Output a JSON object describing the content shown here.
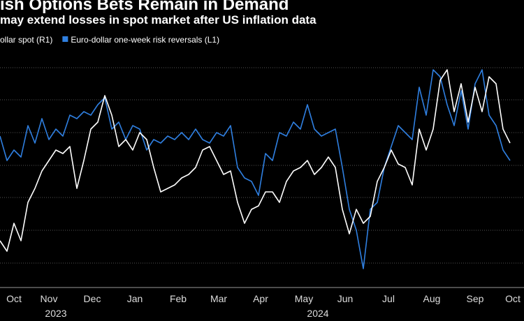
{
  "chart_data": {
    "type": "line",
    "title": "ish Options Bets Remain in Demand",
    "subtitle": "may extend losses in spot market after US inflation data",
    "x": [
      0,
      5,
      10,
      15,
      20,
      25,
      30,
      35,
      40,
      45,
      50,
      55,
      60,
      65,
      70,
      75,
      80,
      85,
      90,
      95,
      100,
      105,
      110,
      115,
      120,
      125,
      130,
      135,
      140,
      145,
      150,
      155,
      160,
      165,
      170,
      175,
      180,
      185,
      190,
      195,
      200,
      205,
      210,
      215,
      220,
      225,
      230,
      235,
      240,
      245,
      250,
      255,
      260,
      265,
      270,
      275,
      280,
      285,
      290,
      295,
      300,
      305,
      310,
      315,
      320,
      325,
      330,
      335,
      340,
      345,
      350,
      355,
      360,
      365
    ],
    "xlim": [
      0,
      375
    ],
    "xticks": [
      {
        "value": 10,
        "label": "Oct"
      },
      {
        "value": 35,
        "label": "Nov"
      },
      {
        "value": 66,
        "label": "Dec"
      },
      {
        "value": 96.5,
        "label": "Jan"
      },
      {
        "value": 127.5,
        "label": "Feb"
      },
      {
        "value": 156.5,
        "label": "Mar"
      },
      {
        "value": 186.5,
        "label": "Apr"
      },
      {
        "value": 217.5,
        "label": "May"
      },
      {
        "value": 247,
        "label": "Jun"
      },
      {
        "value": 278,
        "label": "Jul"
      },
      {
        "value": 309,
        "label": "Aug"
      },
      {
        "value": 340,
        "label": "Sep"
      },
      {
        "value": 367,
        "label": "Oct"
      }
    ],
    "years": [
      {
        "value": 40,
        "label": "2023"
      },
      {
        "value": 227.5,
        "label": "2024"
      }
    ],
    "ylim": [
      0,
      338
    ],
    "yticks": [
      35,
      82,
      129,
      175,
      222,
      269,
      315
    ],
    "grid": true,
    "series": [
      {
        "name": "ollar spot (R1)",
        "color": "#ffffff",
        "values": [
          67,
          52,
          92,
          67,
          122,
          142,
          167,
          182,
          197,
          192,
          202,
          142,
          182,
          227,
          237,
          275,
          247,
          202,
          212,
          197,
          222,
          212,
          172,
          137,
          142,
          147,
          157,
          162,
          172,
          197,
          202,
          182,
          162,
          167,
          122,
          92,
          112,
          117,
          137,
          137,
          122,
          152,
          167,
          172,
          182,
          162,
          172,
          187,
          172,
          112,
          77,
          112,
          92,
          102,
          152,
          172,
          197,
          177,
          172,
          147,
          227,
          197,
          227,
          297,
          312,
          252,
          292,
          237,
          287,
          252,
          302,
          292,
          227,
          207
        ]
      },
      {
        "name": "Euro-dollar one-week risk reversals (L1)",
        "color": "#2f7fe0",
        "values": [
          217,
          182,
          197,
          187,
          232,
          207,
          242,
          212,
          227,
          217,
          247,
          242,
          252,
          247,
          262,
          272,
          227,
          237,
          212,
          232,
          227,
          197,
          212,
          207,
          217,
          212,
          222,
          212,
          227,
          212,
          207,
          222,
          217,
          232,
          172,
          157,
          152,
          132,
          192,
          182,
          222,
          217,
          237,
          227,
          262,
          227,
          217,
          222,
          227,
          172,
          112,
          82,
          27,
          112,
          122,
          172,
          202,
          232,
          222,
          212,
          287,
          247,
          312,
          302,
          262,
          232,
          282,
          227,
          292,
          312,
          247,
          232,
          197,
          182
        ]
      }
    ]
  }
}
